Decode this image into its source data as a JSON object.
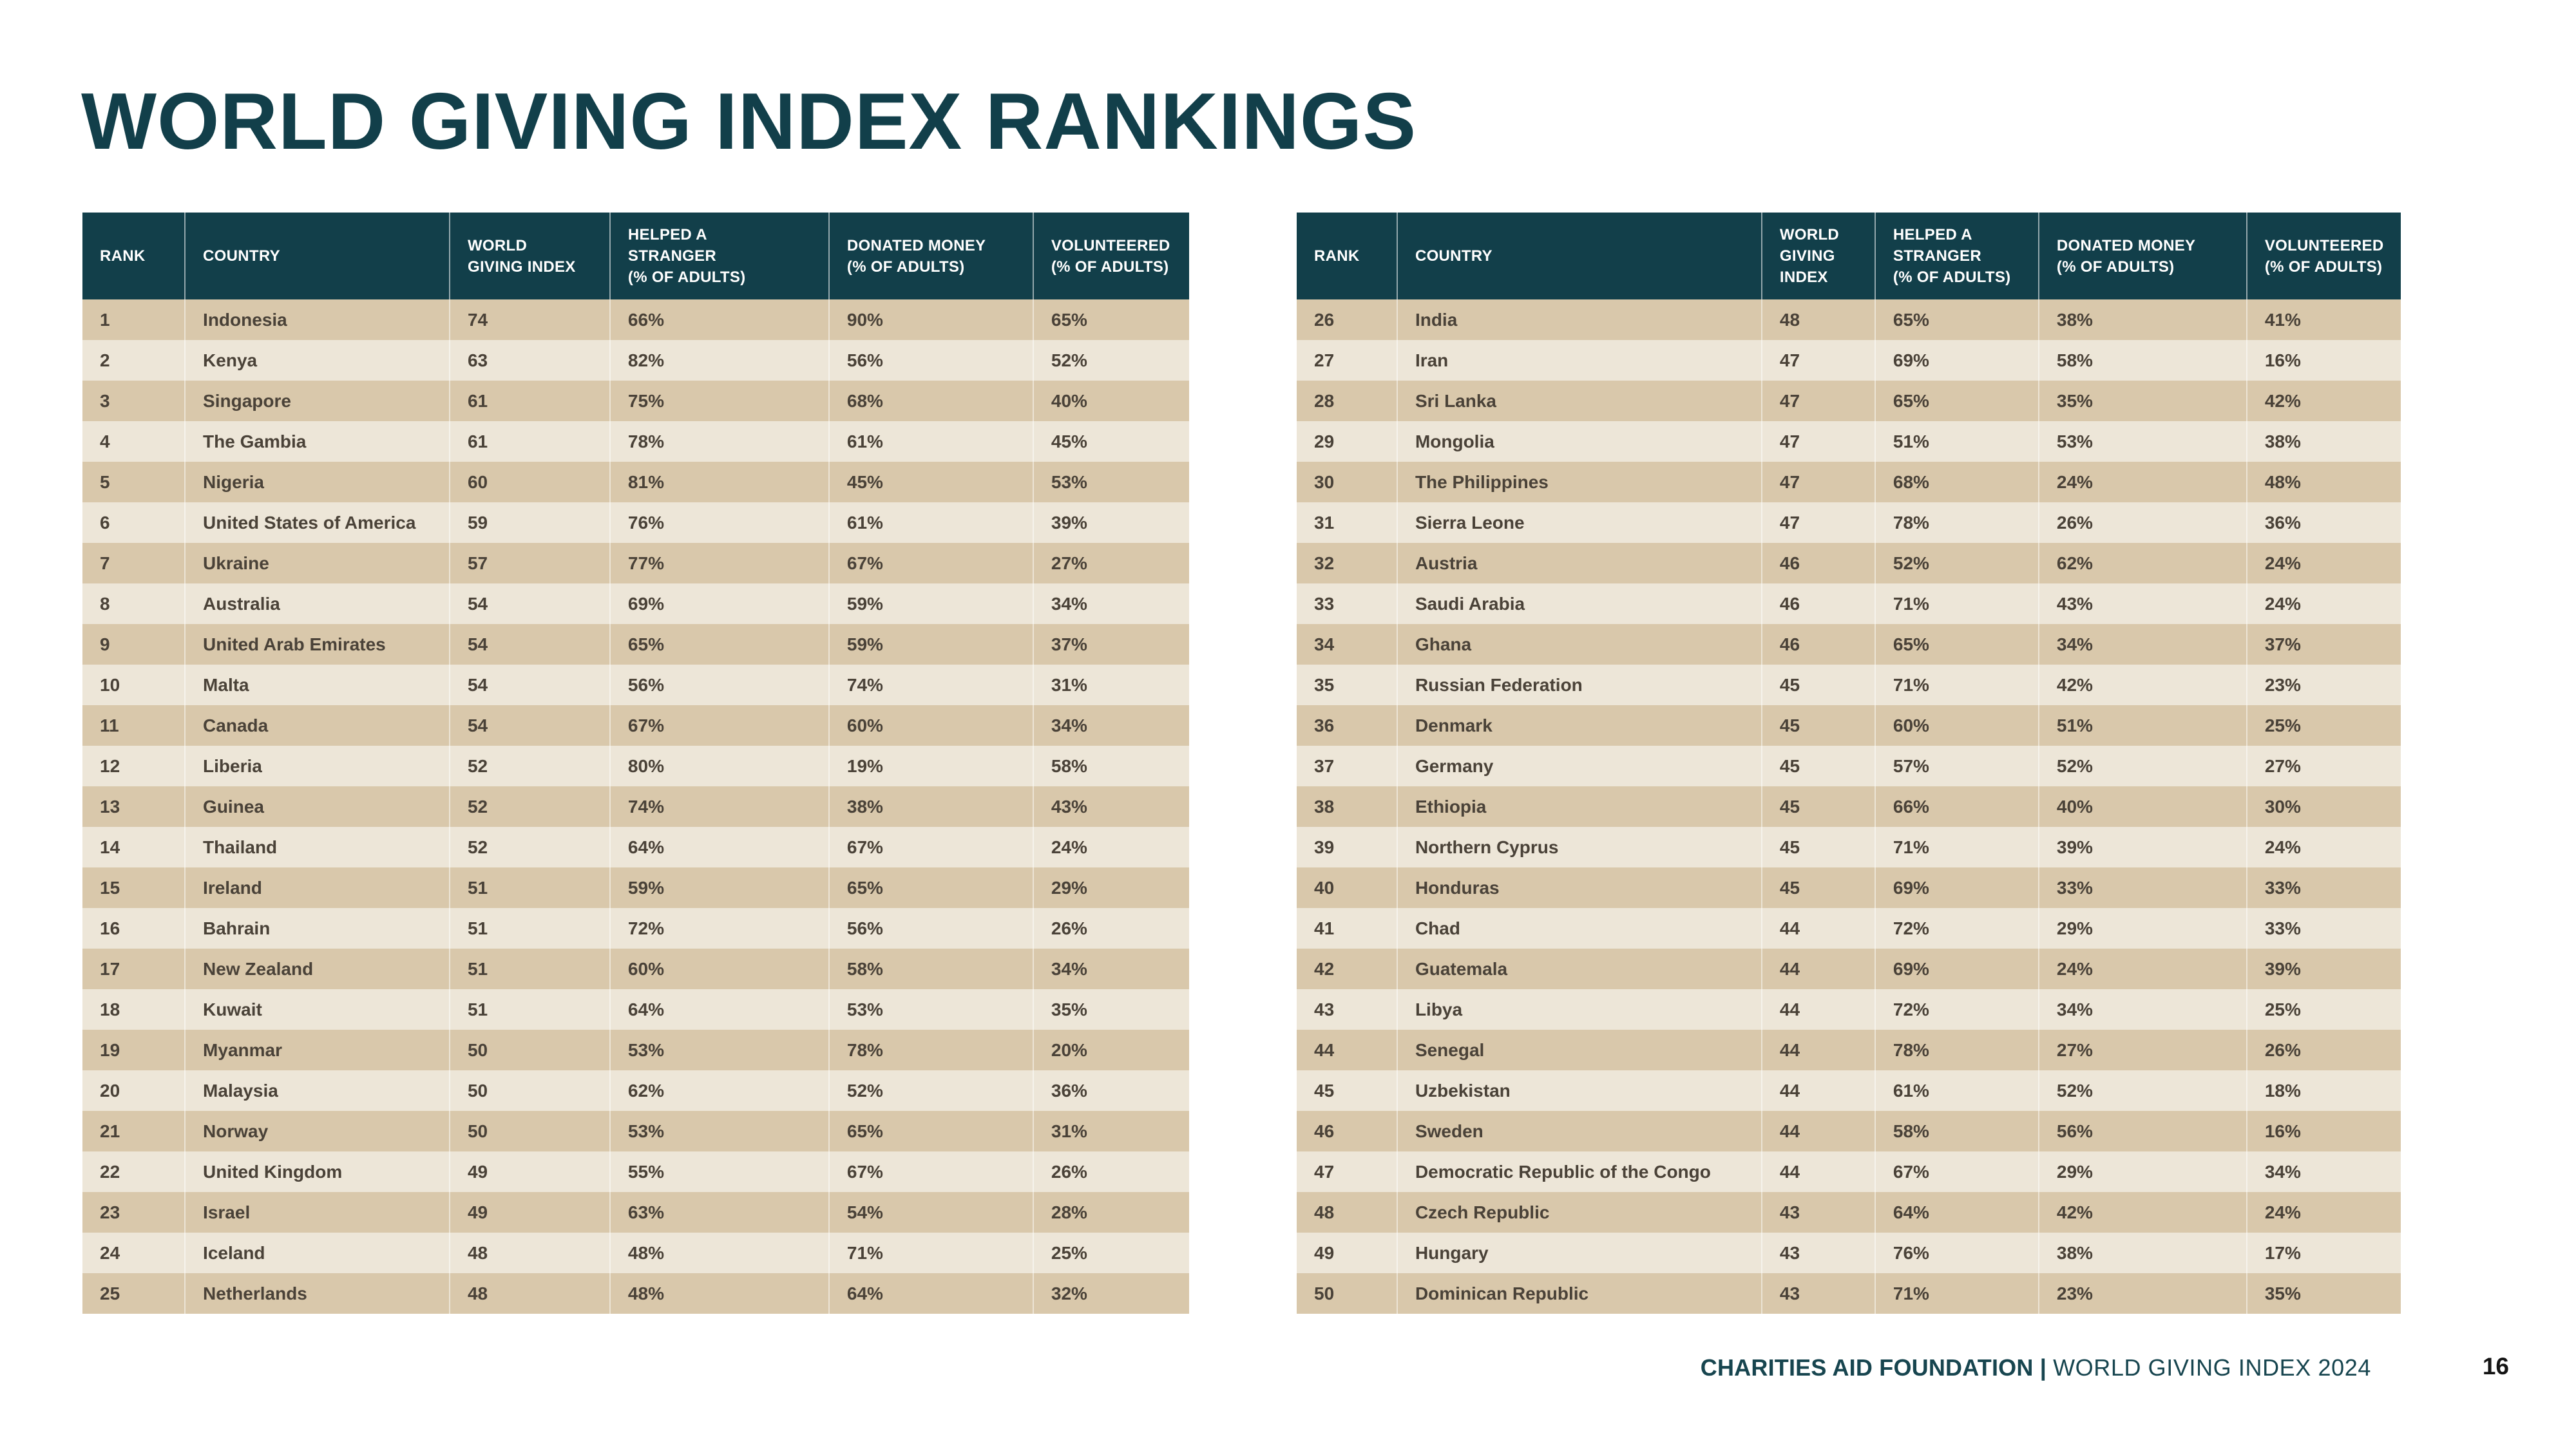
{
  "title": "WORLD GIVING INDEX RANKINGS",
  "colors": {
    "teal_header": "#123F4A",
    "row_dark_tan": "#D9C8AB",
    "row_light_cream": "#EDE6D8",
    "body_text": "#4A4238",
    "page_number_text": "#141414"
  },
  "column_keys": [
    "rank",
    "country",
    "world_giving_index",
    "helped_a_stranger_pct",
    "donated_money_pct",
    "volunteered_pct"
  ],
  "tables": {
    "left": {
      "headers": [
        "RANK",
        "COUNTRY",
        "WORLD\nGIVING INDEX",
        "HELPED A\nSTRANGER\n(% OF ADULTS)",
        "DONATED MONEY\n(% OF ADULTS)",
        "VOLUNTEERED\n(% OF ADULTS)"
      ],
      "rows": [
        [
          "1",
          "Indonesia",
          "74",
          "66%",
          "90%",
          "65%"
        ],
        [
          "2",
          "Kenya",
          "63",
          "82%",
          "56%",
          "52%"
        ],
        [
          "3",
          "Singapore",
          "61",
          "75%",
          "68%",
          "40%"
        ],
        [
          "4",
          "The Gambia",
          "61",
          "78%",
          "61%",
          "45%"
        ],
        [
          "5",
          "Nigeria",
          "60",
          "81%",
          "45%",
          "53%"
        ],
        [
          "6",
          "United States of America",
          "59",
          "76%",
          "61%",
          "39%"
        ],
        [
          "7",
          "Ukraine",
          "57",
          "77%",
          "67%",
          "27%"
        ],
        [
          "8",
          "Australia",
          "54",
          "69%",
          "59%",
          "34%"
        ],
        [
          "9",
          "United Arab Emirates",
          "54",
          "65%",
          "59%",
          "37%"
        ],
        [
          "10",
          "Malta",
          "54",
          "56%",
          "74%",
          "31%"
        ],
        [
          "11",
          "Canada",
          "54",
          "67%",
          "60%",
          "34%"
        ],
        [
          "12",
          "Liberia",
          "52",
          "80%",
          "19%",
          "58%"
        ],
        [
          "13",
          "Guinea",
          "52",
          "74%",
          "38%",
          "43%"
        ],
        [
          "14",
          "Thailand",
          "52",
          "64%",
          "67%",
          "24%"
        ],
        [
          "15",
          "Ireland",
          "51",
          "59%",
          "65%",
          "29%"
        ],
        [
          "16",
          "Bahrain",
          "51",
          "72%",
          "56%",
          "26%"
        ],
        [
          "17",
          "New Zealand",
          "51",
          "60%",
          "58%",
          "34%"
        ],
        [
          "18",
          "Kuwait",
          "51",
          "64%",
          "53%",
          "35%"
        ],
        [
          "19",
          "Myanmar",
          "50",
          "53%",
          "78%",
          "20%"
        ],
        [
          "20",
          "Malaysia",
          "50",
          "62%",
          "52%",
          "36%"
        ],
        [
          "21",
          "Norway",
          "50",
          "53%",
          "65%",
          "31%"
        ],
        [
          "22",
          "United Kingdom",
          "49",
          "55%",
          "67%",
          "26%"
        ],
        [
          "23",
          "Israel",
          "49",
          "63%",
          "54%",
          "28%"
        ],
        [
          "24",
          "Iceland",
          "48",
          "48%",
          "71%",
          "25%"
        ],
        [
          "25",
          "Netherlands",
          "48",
          "48%",
          "64%",
          "32%"
        ]
      ]
    },
    "right": {
      "headers": [
        "RANK",
        "COUNTRY",
        "WORLD\nGIVING\nINDEX",
        "HELPED A\nSTRANGER\n(% OF ADULTS)",
        "DONATED MONEY\n(% OF ADULTS)",
        "VOLUNTEERED\n(% OF ADULTS)"
      ],
      "rows": [
        [
          "26",
          "India",
          "48",
          "65%",
          "38%",
          "41%"
        ],
        [
          "27",
          "Iran",
          "47",
          "69%",
          "58%",
          "16%"
        ],
        [
          "28",
          "Sri Lanka",
          "47",
          "65%",
          "35%",
          "42%"
        ],
        [
          "29",
          "Mongolia",
          "47",
          "51%",
          "53%",
          "38%"
        ],
        [
          "30",
          "The Philippines",
          "47",
          "68%",
          "24%",
          "48%"
        ],
        [
          "31",
          "Sierra Leone",
          "47",
          "78%",
          "26%",
          "36%"
        ],
        [
          "32",
          "Austria",
          "46",
          "52%",
          "62%",
          "24%"
        ],
        [
          "33",
          "Saudi Arabia",
          "46",
          "71%",
          "43%",
          "24%"
        ],
        [
          "34",
          "Ghana",
          "46",
          "65%",
          "34%",
          "37%"
        ],
        [
          "35",
          "Russian Federation",
          "45",
          "71%",
          "42%",
          "23%"
        ],
        [
          "36",
          "Denmark",
          "45",
          "60%",
          "51%",
          "25%"
        ],
        [
          "37",
          "Germany",
          "45",
          "57%",
          "52%",
          "27%"
        ],
        [
          "38",
          "Ethiopia",
          "45",
          "66%",
          "40%",
          "30%"
        ],
        [
          "39",
          "Northern Cyprus",
          "45",
          "71%",
          "39%",
          "24%"
        ],
        [
          "40",
          "Honduras",
          "45",
          "69%",
          "33%",
          "33%"
        ],
        [
          "41",
          "Chad",
          "44",
          "72%",
          "29%",
          "33%"
        ],
        [
          "42",
          "Guatemala",
          "44",
          "69%",
          "24%",
          "39%"
        ],
        [
          "43",
          "Libya",
          "44",
          "72%",
          "34%",
          "25%"
        ],
        [
          "44",
          "Senegal",
          "44",
          "78%",
          "27%",
          "26%"
        ],
        [
          "45",
          "Uzbekistan",
          "44",
          "61%",
          "52%",
          "18%"
        ],
        [
          "46",
          "Sweden",
          "44",
          "58%",
          "56%",
          "16%"
        ],
        [
          "47",
          "Democratic Republic of the Congo",
          "44",
          "67%",
          "29%",
          "34%"
        ],
        [
          "48",
          "Czech Republic",
          "43",
          "64%",
          "42%",
          "24%"
        ],
        [
          "49",
          "Hungary",
          "43",
          "76%",
          "38%",
          "17%"
        ],
        [
          "50",
          "Dominican Republic",
          "43",
          "71%",
          "23%",
          "35%"
        ]
      ]
    }
  },
  "footer": {
    "brand": "CHARITIES AID FOUNDATION |",
    "publication": "WORLD GIVING INDEX 2024",
    "page_number": "16"
  }
}
